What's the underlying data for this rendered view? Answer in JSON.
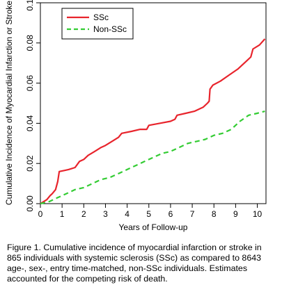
{
  "chart_data": {
    "type": "line",
    "xlabel": "Years of Follow-up",
    "ylabel": "Cumulative Incidence of Myocardial Infarction or Stroke",
    "xlim": [
      0,
      10.4
    ],
    "ylim": [
      0,
      0.1
    ],
    "x_ticks": [
      0,
      1,
      2,
      3,
      4,
      5,
      6,
      7,
      8,
      9,
      10
    ],
    "x_tick_labels": [
      "0",
      "1",
      "2",
      "3",
      "4",
      "5",
      "6",
      "7",
      "8",
      "9",
      "10"
    ],
    "y_ticks": [
      0,
      0.02,
      0.04,
      0.06,
      0.08,
      0.1
    ],
    "y_tick_labels": [
      "0.00",
      "0.02",
      "0.04",
      "0.06",
      "0.08",
      "0.10"
    ],
    "grid": false,
    "legend_position": "top-left",
    "series": [
      {
        "name": "SSc",
        "color": "#e8242c",
        "style": "solid",
        "points": [
          [
            0,
            0
          ],
          [
            0.15,
            0.001
          ],
          [
            0.3,
            0.002
          ],
          [
            0.45,
            0.004
          ],
          [
            0.55,
            0.005
          ],
          [
            0.7,
            0.007
          ],
          [
            0.8,
            0.011
          ],
          [
            0.87,
            0.016
          ],
          [
            1.1,
            0.0165
          ],
          [
            1.3,
            0.017
          ],
          [
            1.6,
            0.018
          ],
          [
            1.8,
            0.021
          ],
          [
            2.0,
            0.022
          ],
          [
            2.2,
            0.024
          ],
          [
            2.5,
            0.026
          ],
          [
            2.8,
            0.028
          ],
          [
            3.0,
            0.029
          ],
          [
            3.3,
            0.031
          ],
          [
            3.6,
            0.033
          ],
          [
            3.75,
            0.035
          ],
          [
            4.2,
            0.036
          ],
          [
            4.6,
            0.037
          ],
          [
            4.9,
            0.037
          ],
          [
            5.0,
            0.039
          ],
          [
            5.5,
            0.04
          ],
          [
            6.0,
            0.041
          ],
          [
            6.2,
            0.042
          ],
          [
            6.3,
            0.044
          ],
          [
            6.7,
            0.045
          ],
          [
            7.1,
            0.046
          ],
          [
            7.5,
            0.048
          ],
          [
            7.7,
            0.05
          ],
          [
            7.78,
            0.051
          ],
          [
            7.82,
            0.057
          ],
          [
            7.95,
            0.059
          ],
          [
            8.3,
            0.061
          ],
          [
            8.7,
            0.064
          ],
          [
            9.1,
            0.067
          ],
          [
            9.5,
            0.071
          ],
          [
            9.7,
            0.073
          ],
          [
            9.8,
            0.077
          ],
          [
            10.1,
            0.079
          ],
          [
            10.35,
            0.082
          ]
        ]
      },
      {
        "name": "Non-SSc",
        "color": "#33cc33",
        "style": "dashed",
        "points": [
          [
            0,
            0
          ],
          [
            0.4,
            0.001
          ],
          [
            0.8,
            0.003
          ],
          [
            1.2,
            0.005
          ],
          [
            1.6,
            0.007
          ],
          [
            2.0,
            0.008
          ],
          [
            2.4,
            0.01
          ],
          [
            2.8,
            0.012
          ],
          [
            3.2,
            0.013
          ],
          [
            3.6,
            0.015
          ],
          [
            4.0,
            0.017
          ],
          [
            4.4,
            0.019
          ],
          [
            4.8,
            0.021
          ],
          [
            5.2,
            0.023
          ],
          [
            5.6,
            0.025
          ],
          [
            6.0,
            0.026
          ],
          [
            6.4,
            0.028
          ],
          [
            6.8,
            0.03
          ],
          [
            7.2,
            0.031
          ],
          [
            7.6,
            0.032
          ],
          [
            8.0,
            0.034
          ],
          [
            8.4,
            0.035
          ],
          [
            8.8,
            0.037
          ],
          [
            9.2,
            0.041
          ],
          [
            9.6,
            0.044
          ],
          [
            10.0,
            0.045
          ],
          [
            10.35,
            0.046
          ]
        ]
      }
    ]
  },
  "caption": "Figure 1. Cumulative incidence of myocardial infarction or stroke in 865 individuals with systemic sclerosis (SSc) as compared to 8643 age-, sex-, entry time-matched, non-SSc individuals.  Estimates accounted for the competing risk of death."
}
